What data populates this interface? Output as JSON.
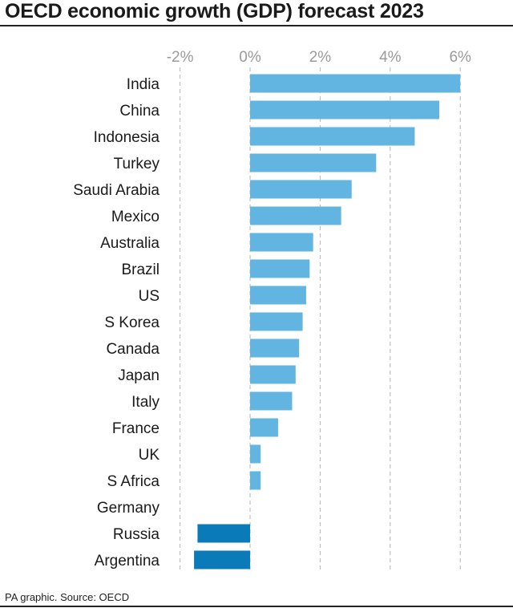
{
  "title": "OECD economic growth (GDP) forecast 2023",
  "source": "PA graphic. Source: OECD",
  "colors": {
    "positive": "#62b5e0",
    "negative": "#0a7ab8",
    "grid": "#b5b5b5",
    "tick_label": "#9a9a9a"
  },
  "chart_data": {
    "type": "bar",
    "orientation": "horizontal",
    "title": "OECD economic growth (GDP) forecast 2023",
    "categories": [
      "India",
      "China",
      "Indonesia",
      "Turkey",
      "Saudi Arabia",
      "Mexico",
      "Australia",
      "Brazil",
      "US",
      "S Korea",
      "Canada",
      "Japan",
      "Italy",
      "France",
      "UK",
      "S Africa",
      "Germany",
      "Russia",
      "Argentina"
    ],
    "values": [
      6.0,
      5.4,
      4.7,
      3.6,
      2.9,
      2.6,
      1.8,
      1.7,
      1.6,
      1.5,
      1.4,
      1.3,
      1.2,
      0.8,
      0.3,
      0.3,
      0.0,
      -1.5,
      -1.6
    ],
    "xlim": [
      -2.6,
      6.2
    ],
    "xticks": [
      -2,
      0,
      2,
      4,
      6
    ],
    "xtick_labels": [
      "-2%",
      "0%",
      "2%",
      "4%",
      "6%"
    ],
    "grid": true,
    "grid_style": "dashed-vertical"
  }
}
